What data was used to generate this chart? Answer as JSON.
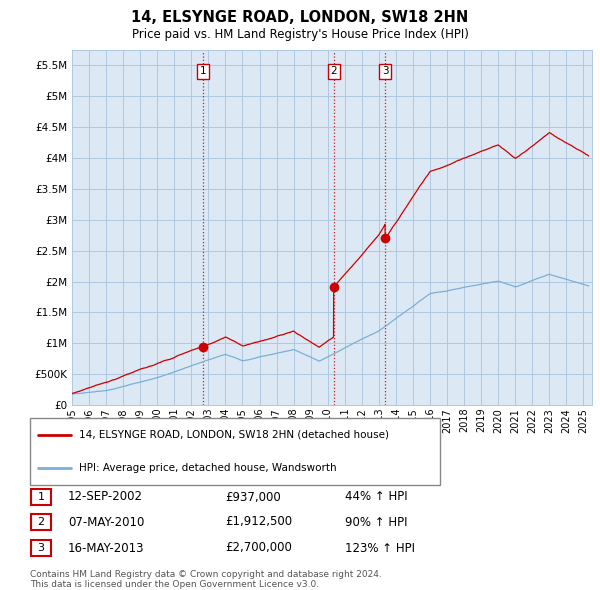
{
  "title": "14, ELSYNGE ROAD, LONDON, SW18 2HN",
  "subtitle": "Price paid vs. HM Land Registry's House Price Index (HPI)",
  "ylim": [
    0,
    5750000
  ],
  "yticks": [
    0,
    500000,
    1000000,
    1500000,
    2000000,
    2500000,
    3000000,
    3500000,
    4000000,
    4500000,
    5000000,
    5500000
  ],
  "ytick_labels": [
    "£0",
    "£500K",
    "£1M",
    "£1.5M",
    "£2M",
    "£2.5M",
    "£3M",
    "£3.5M",
    "£4M",
    "£4.5M",
    "£5M",
    "£5.5M"
  ],
  "xlim_start": 1995,
  "xlim_end": 2025.5,
  "sale_dates": [
    2002.7,
    2010.35,
    2013.37
  ],
  "sale_prices": [
    937000,
    1912500,
    2700000
  ],
  "sale_labels": [
    "1",
    "2",
    "3"
  ],
  "legend_line1": "14, ELSYNGE ROAD, LONDON, SW18 2HN (detached house)",
  "legend_line2": "HPI: Average price, detached house, Wandsworth",
  "table_data": [
    [
      "1",
      "12-SEP-2002",
      "£937,000",
      "44% ↑ HPI"
    ],
    [
      "2",
      "07-MAY-2010",
      "£1,912,500",
      "90% ↑ HPI"
    ],
    [
      "3",
      "16-MAY-2013",
      "£2,700,000",
      "123% ↑ HPI"
    ]
  ],
  "footer": "Contains HM Land Registry data © Crown copyright and database right 2024.\nThis data is licensed under the Open Government Licence v3.0.",
  "line_color_red": "#cc0000",
  "line_color_blue": "#7bafd4",
  "bg_chart": "#dce9f5",
  "grid_color": "#b0c8e0",
  "vline_color": "#cc0000"
}
